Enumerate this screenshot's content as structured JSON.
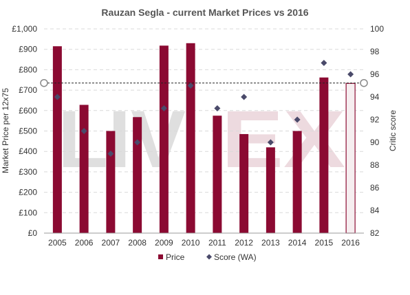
{
  "chart_data": {
    "type": "bar",
    "title": "Rauzan Segla - current Market Prices vs 2016",
    "ylabel": "Market Price per 12x75",
    "y2label": "Critic score",
    "categories": [
      "2005",
      "2006",
      "2007",
      "2008",
      "2009",
      "2010",
      "2011",
      "2012",
      "2013",
      "2014",
      "2015",
      "2016"
    ],
    "series": [
      {
        "name": "Price",
        "kind": "bar",
        "color": "#8B0A32",
        "values": [
          915,
          628,
          500,
          568,
          918,
          930,
          575,
          485,
          420,
          500,
          762,
          733
        ]
      },
      {
        "name": "Score (WA)",
        "kind": "scatter",
        "axis": "right",
        "color": "#4A4A6A",
        "values": [
          94,
          91,
          89,
          90,
          93,
          95,
          93,
          94,
          90,
          92,
          97,
          96
        ]
      }
    ],
    "highlight_category": "2016",
    "reference_line_value": 735,
    "ylim": [
      0,
      1000
    ],
    "y_ticks": [
      0,
      100,
      200,
      300,
      400,
      500,
      600,
      700,
      800,
      900,
      1000
    ],
    "y_tick_labels": [
      "£0",
      "£100",
      "£200",
      "£300",
      "£400",
      "£500",
      "£600",
      "£700",
      "£800",
      "£900",
      "£1,000"
    ],
    "y2lim": [
      82,
      100
    ],
    "y2_ticks": [
      82,
      84,
      86,
      88,
      90,
      92,
      94,
      96,
      98,
      100
    ],
    "y2_tick_labels": [
      "82",
      "84",
      "86",
      "88",
      "90",
      "92",
      "94",
      "96",
      "98",
      "100"
    ],
    "grid": true,
    "legend_position": "bottom",
    "watermark": "LIV-EX"
  }
}
